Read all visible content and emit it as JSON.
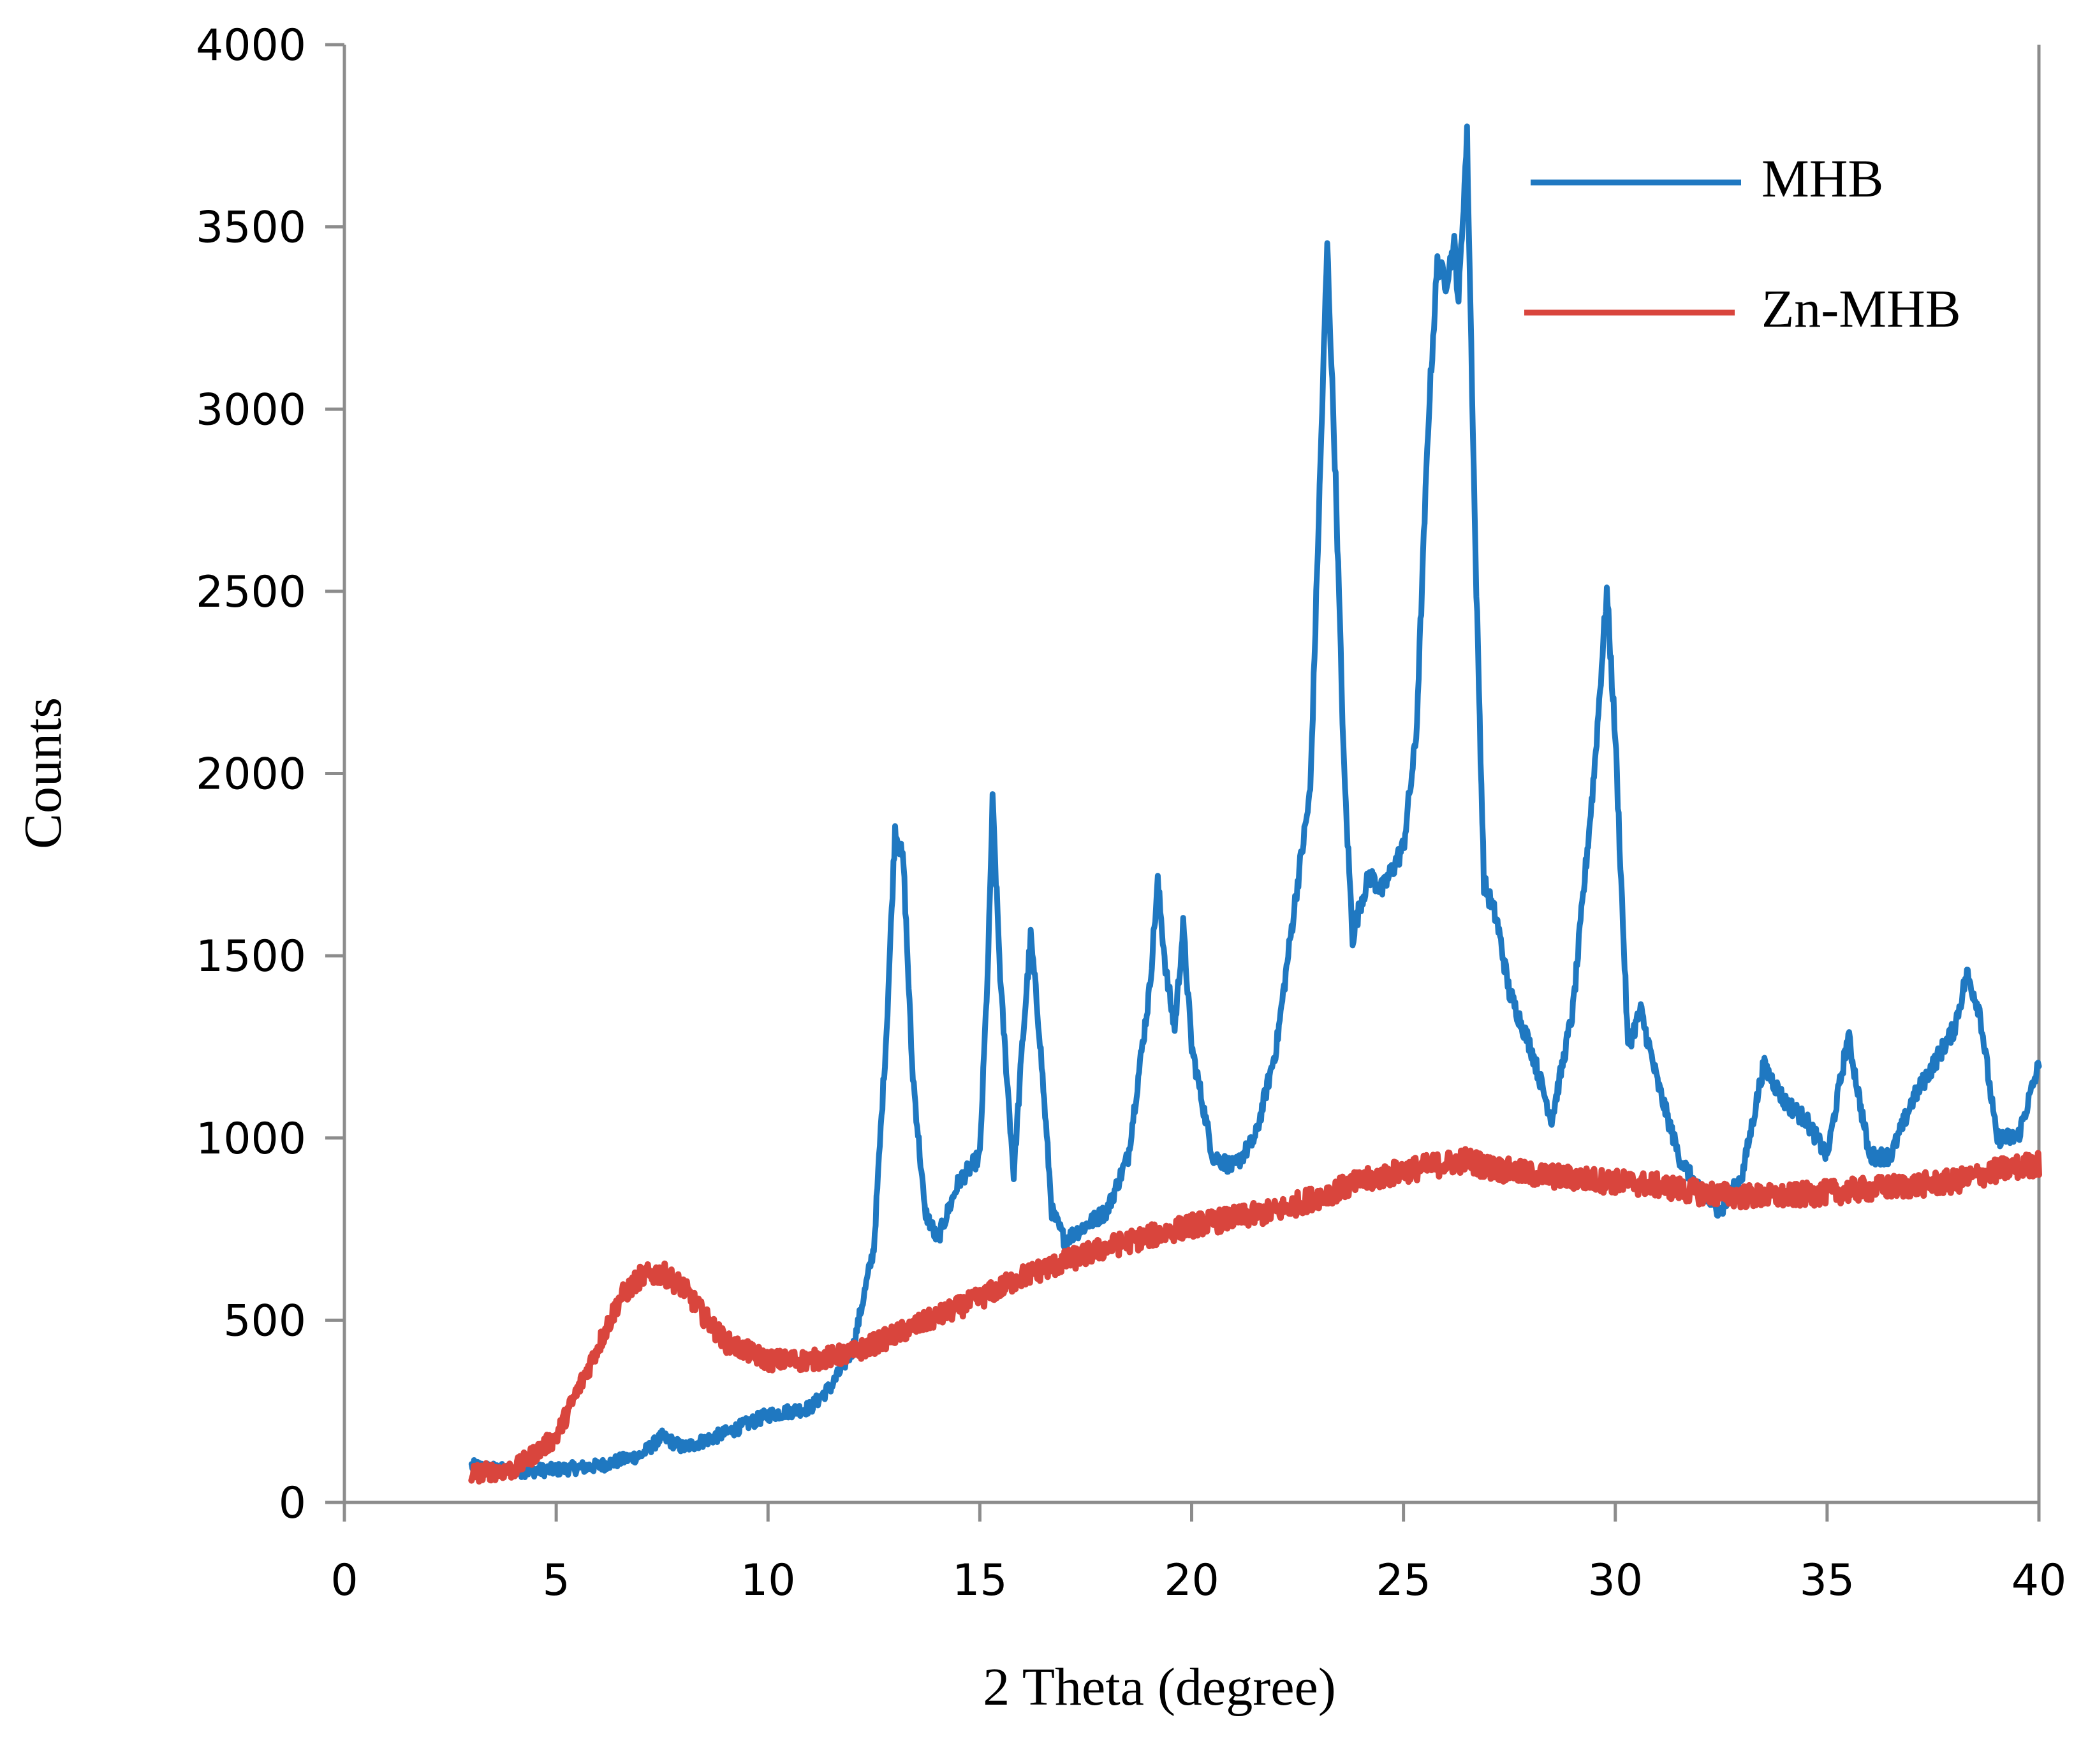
{
  "chart_data": {
    "type": "line",
    "title": "",
    "xlabel": "2 Theta (degree)",
    "ylabel": "Counts",
    "xlim": [
      0,
      40
    ],
    "ylim": [
      0,
      4000
    ],
    "xticks": [
      "0",
      "5",
      "10",
      "15",
      "20",
      "25",
      "30",
      "35",
      "40"
    ],
    "yticks": [
      "0",
      "500",
      "1000",
      "1500",
      "2000",
      "2500",
      "3000",
      "3500",
      "4000"
    ],
    "grid": false,
    "legend_position": "top-right",
    "series": [
      {
        "name": "MHB",
        "color": "#1f78c1",
        "x": [
          3,
          4,
          5,
          6,
          7,
          7.5,
          8,
          9,
          10,
          11,
          11.5,
          12,
          12.5,
          12.8,
          13,
          13.2,
          13.4,
          13.7,
          14,
          14.5,
          15,
          15.2,
          15.3,
          15.5,
          15.8,
          16,
          16.2,
          16.4,
          16.7,
          17,
          17.5,
          18,
          18.5,
          19,
          19.2,
          19.4,
          19.6,
          19.8,
          20,
          20.5,
          21,
          21.5,
          22,
          22.5,
          22.8,
          23,
          23.2,
          23.4,
          23.6,
          23.8,
          24,
          24.2,
          24.5,
          25,
          25.3,
          25.6,
          25.8,
          26,
          26.2,
          26.3,
          26.5,
          26.7,
          26.9,
          27.2,
          27.5,
          28,
          28.5,
          29,
          29.5,
          29.8,
          30,
          30.3,
          30.6,
          31,
          31.5,
          32,
          32.5,
          33,
          33.5,
          34,
          34.5,
          35,
          35.5,
          36,
          36.5,
          37,
          37.5,
          38,
          38.3,
          38.6,
          39,
          39.5,
          40
        ],
        "values": [
          100,
          85,
          90,
          100,
          130,
          180,
          150,
          190,
          240,
          260,
          320,
          420,
          700,
          1300,
          1850,
          1750,
          1200,
          800,
          720,
          880,
          950,
          1500,
          1920,
          1400,
          900,
          1250,
          1550,
          1300,
          800,
          720,
          760,
          800,
          950,
          1400,
          1700,
          1450,
          1300,
          1580,
          1250,
          950,
          920,
          1000,
          1250,
          1700,
          1950,
          2700,
          3450,
          2800,
          2000,
          1550,
          1650,
          1720,
          1680,
          1800,
          2100,
          3000,
          3400,
          3350,
          3450,
          3300,
          3750,
          2600,
          1700,
          1600,
          1400,
          1250,
          1050,
          1350,
          2000,
          2500,
          2100,
          1250,
          1350,
          1150,
          950,
          850,
          800,
          900,
          1200,
          1100,
          1050,
          950,
          1280,
          950,
          950,
          1100,
          1200,
          1300,
          1450,
          1350,
          1000,
          1000,
          1200
        ]
      },
      {
        "name": "Zn-MHB",
        "color": "#d9453d",
        "x": [
          3,
          4,
          5,
          6,
          6.5,
          7,
          7.5,
          8,
          8.5,
          9,
          10,
          11,
          12,
          13,
          14,
          15,
          16,
          17,
          18,
          19,
          20,
          21,
          22,
          23,
          24,
          25,
          26,
          26.5,
          27,
          28,
          29,
          30,
          31,
          32,
          33,
          34,
          35,
          36,
          37,
          38,
          39,
          40
        ],
        "values": [
          80,
          90,
          180,
          430,
          560,
          620,
          630,
          590,
          510,
          440,
          390,
          390,
          410,
          460,
          510,
          560,
          620,
          660,
          700,
          730,
          760,
          780,
          800,
          840,
          880,
          910,
          930,
          940,
          920,
          900,
          890,
          880,
          870,
          850,
          840,
          840,
          850,
          860,
          870,
          880,
          910,
          930
        ]
      }
    ]
  }
}
